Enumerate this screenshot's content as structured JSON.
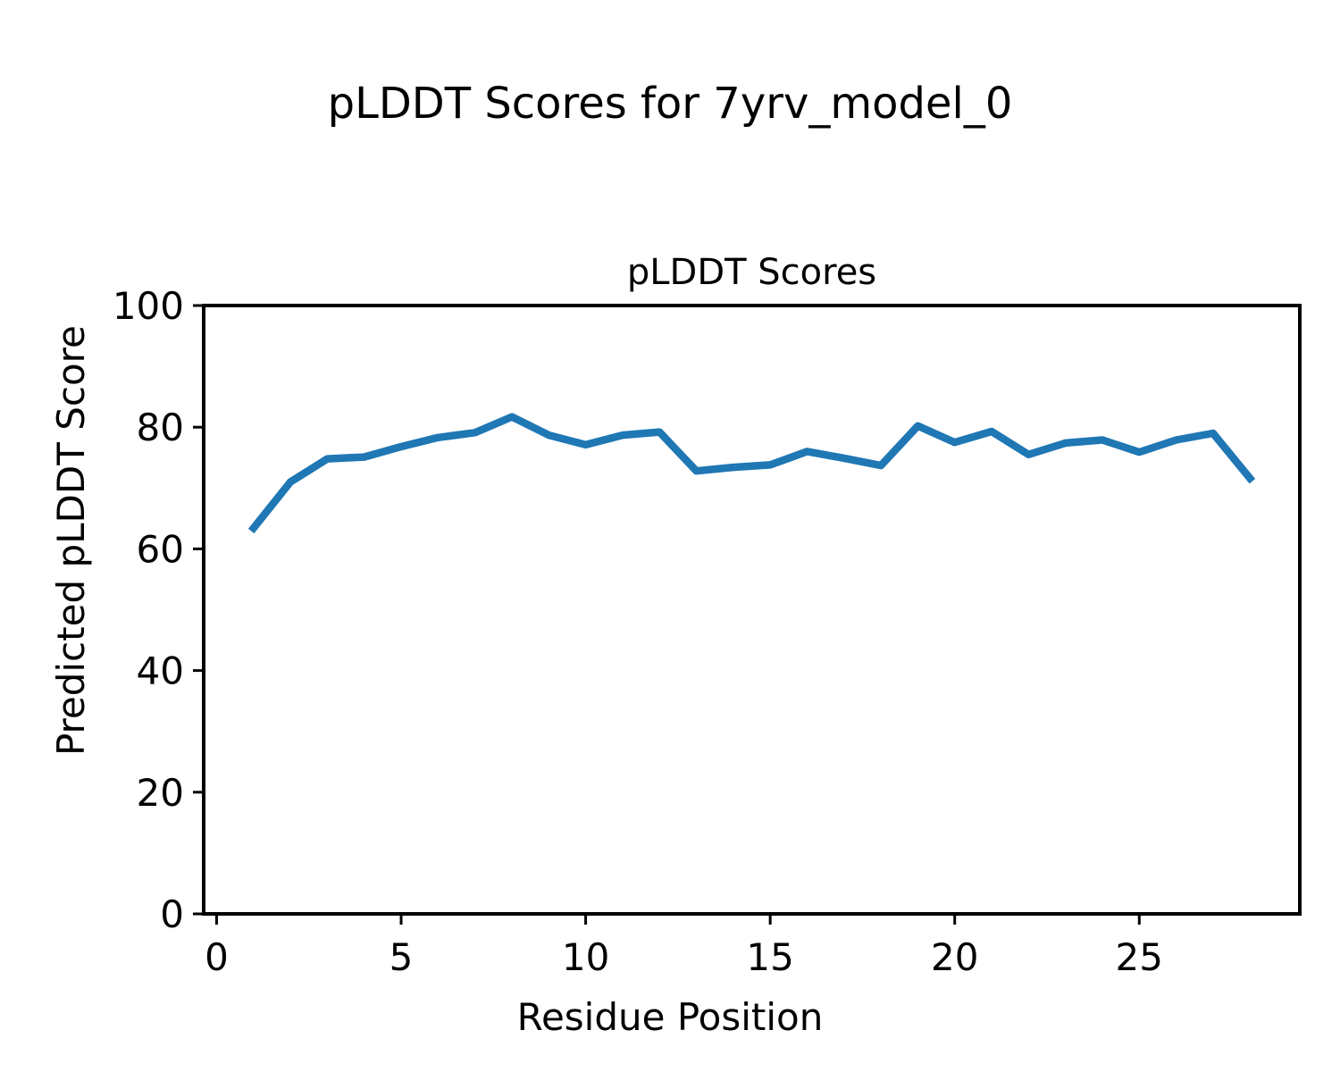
{
  "figure": {
    "suptitle": "pLDDT Scores for 7yrv_model_0",
    "background": "#ffffff",
    "text_color": "#000000"
  },
  "chart_data": {
    "type": "line",
    "title": "pLDDT Scores",
    "suptitle": "pLDDT Scores for 7yrv_model_0",
    "xlabel": "Residue Position",
    "ylabel": "Predicted pLDDT Score",
    "x": [
      1,
      2,
      3,
      4,
      5,
      6,
      7,
      8,
      9,
      10,
      11,
      12,
      13,
      14,
      15,
      16,
      17,
      18,
      19,
      20,
      21,
      22,
      23,
      24,
      25,
      26,
      27,
      28
    ],
    "y": [
      63.4,
      71.0,
      74.8,
      75.1,
      76.8,
      78.3,
      79.1,
      81.7,
      78.7,
      77.1,
      78.7,
      79.2,
      72.8,
      73.4,
      73.8,
      76.0,
      74.9,
      73.7,
      80.2,
      77.5,
      79.3,
      75.5,
      77.4,
      77.9,
      75.9,
      77.9,
      79.0,
      71.6
    ],
    "xlim": [
      -0.35,
      29.35
    ],
    "ylim": [
      0,
      100
    ],
    "xticks": [
      0,
      5,
      10,
      15,
      20,
      25
    ],
    "yticks": [
      0,
      20,
      40,
      60,
      80,
      100
    ],
    "grid": false,
    "legend": null,
    "line_color": "#1f77b4",
    "line_width": 8.5,
    "spine_color": "#000000",
    "tick_color": "#000000",
    "tick_label_size": 42
  }
}
